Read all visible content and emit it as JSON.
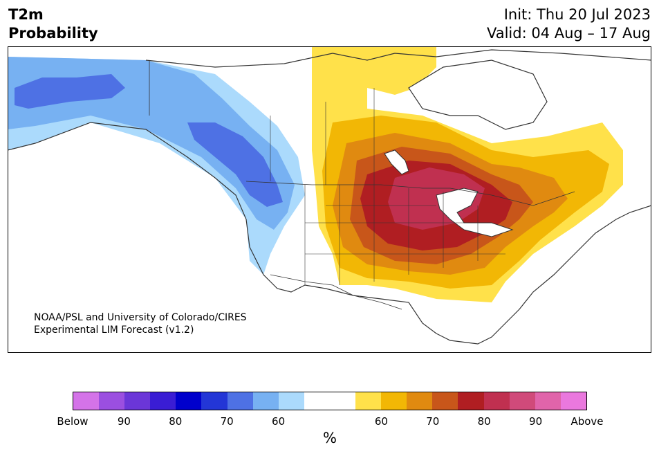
{
  "title": {
    "variable": "T2m",
    "subtitle": "Probability",
    "init": "Init: Thu 20 Jul 2023",
    "valid": "Valid: 04 Aug – 17 Aug"
  },
  "credit": {
    "line1": "NOAA/PSL and University of Colorado/CIRES",
    "line2": "Experimental LIM Forecast (v1.2)"
  },
  "colorbar": {
    "colors": [
      "#d473e8",
      "#9b4fe0",
      "#6b36d8",
      "#3a1dd4",
      "#0000cc",
      "#2336d6",
      "#4e71e4",
      "#77b1f2",
      "#abdafc",
      "#ffffff",
      "#ffffff",
      "#ffe14a",
      "#f2b705",
      "#e08a10",
      "#c8561a",
      "#b01e22",
      "#c03050",
      "#d04a7a",
      "#e064aa",
      "#ea78de"
    ],
    "tick_labels": [
      "Below",
      "90",
      "80",
      "70",
      "60",
      "60",
      "70",
      "80",
      "90",
      "Above"
    ],
    "unit": "%"
  },
  "map": {
    "colors": {
      "below_50": "#abdafc",
      "below_60": "#77b1f2",
      "below_70": "#4e71e4",
      "above_50": "#ffe14a",
      "above_60": "#f2b705",
      "above_70": "#e08a10",
      "above_80": "#c8561a",
      "above_90": "#b01e22",
      "above_95": "#c03050",
      "coast": "#333333",
      "water": "#ffffff"
    }
  }
}
